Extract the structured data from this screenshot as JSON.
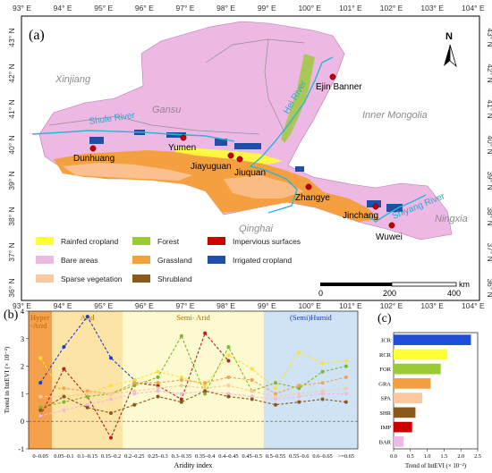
{
  "panel_a": {
    "label": "(a)",
    "north": "N",
    "lon_ticks": [
      "93° E",
      "94° E",
      "95° E",
      "96° E",
      "97° E",
      "98° E",
      "99° E",
      "100° E",
      "101° E",
      "102° E",
      "103° E",
      "104° E"
    ],
    "lat_ticks": [
      "43° N",
      "42° N",
      "41° N",
      "40° N",
      "39° N",
      "38° N",
      "37° N",
      "36° N"
    ],
    "regions": [
      "Xinjiang",
      "Gansu",
      "Inner Mongolia",
      "Qinghai",
      "Ningxia"
    ],
    "rivers": [
      "Shule River",
      "Hei River",
      "Shiyang River"
    ],
    "cities": [
      "Ejin Banner",
      "Yumen",
      "Dunhuang",
      "Jiayuguan",
      "Jiuquan",
      "Zhangye",
      "Jinchang",
      "Wuwei"
    ],
    "scale": {
      "ticks": [
        "0",
        "200",
        "400"
      ],
      "unit": "km"
    },
    "legend": [
      {
        "label": "Rainfed cropland",
        "color": "#ffff33"
      },
      {
        "label": "Forest",
        "color": "#99cc33"
      },
      {
        "label": "Impervious surfaces",
        "color": "#cc0000"
      },
      {
        "label": "Bare areas",
        "color": "#eeb8e4"
      },
      {
        "label": "Grassland",
        "color": "#f5a040"
      },
      {
        "label": "Irrigated cropland",
        "color": "#1f4fa8"
      },
      {
        "label": "Sparse vegetation",
        "color": "#fcc8a0"
      },
      {
        "label": "Shrubland",
        "color": "#8b5a1a"
      }
    ]
  },
  "panel_b": {
    "label": "(b)",
    "zones": [
      {
        "name": "Hyper\n-Arid",
        "color": "#f5a04a"
      },
      {
        "name": "Arid",
        "color": "#fce3a6"
      },
      {
        "name": "Semi- Arid",
        "color": "#fdf9d0"
      },
      {
        "name": "(Semi)Humid",
        "color": "#cfe3f5"
      }
    ],
    "ylabel": "Trend in IntEVI (× 10⁻²)",
    "xlabel": "Aridity index"
  },
  "panel_c": {
    "label": "(c)",
    "xlabel": "Trend of IntEVI (× 10⁻²)"
  },
  "chart_data": [
    {
      "type": "line",
      "title": "",
      "xlabel": "Aridity index",
      "ylabel": "Trend in IntEVI (× 10⁻²)",
      "categories": [
        "0–0.05",
        "0.05–0.1",
        "0.1–0.15",
        "0.15–0.2",
        "0.2–0.25",
        "0.25–0.3",
        "0.3–0.35",
        "0.35–0.4",
        "0.4–0.45",
        "0.45–0.5",
        "0.5–0.55",
        "0.55–0.6",
        "0.6–0.65",
        ">=0.65"
      ],
      "ylim": [
        -1,
        4
      ],
      "yticks": [
        -1,
        0,
        1,
        2,
        3,
        4
      ],
      "series": [
        {
          "color": "#1f3fbf",
          "values": [
            1.4,
            2.7,
            3.8,
            2.3,
            1.5,
            null,
            null,
            null,
            null,
            null,
            null,
            null,
            null,
            null
          ]
        },
        {
          "color": "#b22222",
          "values": [
            0.2,
            1.9,
            0.9,
            -0.6,
            1.4,
            1.3,
            0.8,
            3.2,
            2.2,
            null,
            null,
            null,
            null,
            null
          ]
        },
        {
          "color": "#ffe135",
          "values": [
            2.3,
            0.9,
            1.0,
            1.3,
            1.5,
            1.8,
            1.6,
            1.3,
            2.4,
            1.9,
            1.2,
            2.5,
            2.1,
            2.2
          ]
        },
        {
          "color": "#7ab92c",
          "values": [
            0.5,
            0.7,
            0.9,
            1.0,
            1.3,
            1.6,
            3.1,
            1.0,
            2.7,
            1.1,
            1.4,
            1.2,
            1.8,
            2.0
          ]
        },
        {
          "color": "#f3a34a",
          "values": [
            1.2,
            1.2,
            1.1,
            1.0,
            1.4,
            1.4,
            1.5,
            1.4,
            1.6,
            1.5,
            1.0,
            1.3,
            1.4,
            1.6
          ]
        },
        {
          "color": "#fac9a0",
          "values": [
            0.9,
            0.9,
            1.0,
            1.0,
            1.1,
            1.2,
            1.3,
            1.2,
            1.3,
            1.1,
            0.9,
            1.0,
            1.1,
            1.2
          ]
        },
        {
          "color": "#f2b8e4",
          "values": [
            0.2,
            0.4,
            0.6,
            0.8,
            1.0,
            1.1,
            1.0,
            1.1,
            1.0,
            0.9,
            0.8,
            0.9,
            1.0,
            1.0
          ]
        },
        {
          "color": "#8b5a1a",
          "values": [
            0.4,
            0.9,
            0.5,
            0.3,
            0.6,
            0.9,
            0.7,
            1.1,
            0.9,
            0.8,
            0.6,
            0.7,
            0.8,
            0.7
          ]
        }
      ]
    },
    {
      "type": "bar",
      "orientation": "horizontal",
      "title": "",
      "xlabel": "Trend of IntEVI (× 10⁻²)",
      "categories": [
        "ICR",
        "RCR",
        "FOR",
        "GRA",
        "SPA",
        "SHR",
        "IMP",
        "BAR"
      ],
      "values": [
        2.3,
        1.6,
        1.4,
        1.1,
        0.85,
        0.65,
        0.55,
        0.3
      ],
      "colors": [
        "#1f4fd8",
        "#ffff33",
        "#99cc33",
        "#f5a040",
        "#fcc8a0",
        "#8b5a1a",
        "#cc0000",
        "#eeb8e4"
      ],
      "xlim": [
        0,
        2.5
      ],
      "xticks": [
        "0.0",
        "0.5",
        "1.0",
        "1.5",
        "2.0",
        "2.5"
      ]
    }
  ]
}
